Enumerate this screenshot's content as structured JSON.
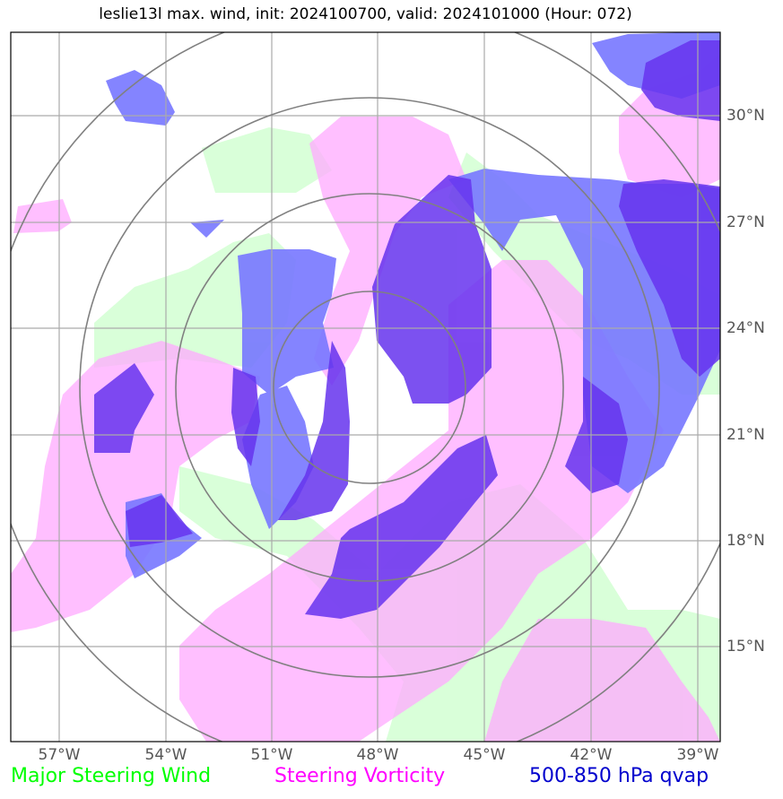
{
  "title": "leslie13l max. wind, init: 2024100700, valid: 2024101000 (Hour: 072)",
  "latitude_labels": [
    "30°N",
    "27°N",
    "24°N",
    "21°N",
    "18°N",
    "15°N"
  ],
  "longitude_labels": [
    "57°W",
    "54°W",
    "51°W",
    "48°W",
    "45°W",
    "42°W",
    "39°W"
  ],
  "legend": {
    "steering_wind": {
      "label": "Major Steering Wind",
      "color": "#00ff00"
    },
    "steering_vorticity": {
      "label": "Steering Vorticity",
      "color": "#ff00ff"
    },
    "qvap": {
      "label": "500-850 hPa qvap",
      "color": "#0000cd"
    }
  },
  "colors": {
    "wind_fill": "#ccffcc",
    "vorticity_fill": "#ffaaff",
    "qvap_light": "#7777ff",
    "qvap_dark": "#6633ee",
    "grid": "#aaaaaa",
    "range_rings": "#808080"
  }
}
